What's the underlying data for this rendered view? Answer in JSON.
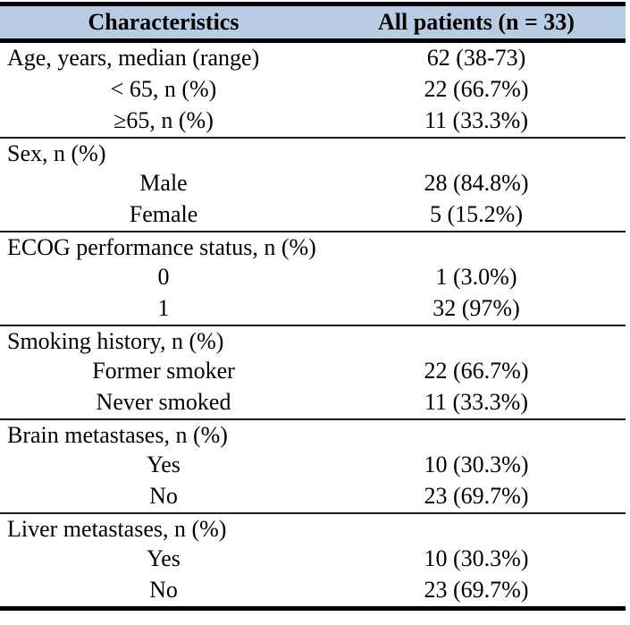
{
  "colors": {
    "header_background": "#b8cce4",
    "rule_color": "#000000",
    "text_color": "#000000"
  },
  "table": {
    "header": {
      "col1": "Characteristics",
      "col2": "All patients (n = 33)"
    },
    "rows": [
      {
        "label": "Age, years, median (range)",
        "value": "62 (38-73)"
      },
      {
        "label": "< 65, n (%)",
        "value": "22 (66.7%)"
      },
      {
        "label": "≥65, n (%)",
        "value": "11 (33.3%)"
      },
      {
        "label": "Sex, n (%)",
        "value": ""
      },
      {
        "label": "Male",
        "value": "28 (84.8%)"
      },
      {
        "label": "Female",
        "value": "5 (15.2%)"
      },
      {
        "label": "ECOG performance status, n (%)",
        "value": ""
      },
      {
        "label": "0",
        "value": "1 (3.0%)"
      },
      {
        "label": "1",
        "value": "32 (97%)"
      },
      {
        "label": "Smoking history, n (%)",
        "value": ""
      },
      {
        "label": "Former smoker",
        "value": "22 (66.7%)"
      },
      {
        "label": "Never smoked",
        "value": "11 (33.3%)"
      },
      {
        "label": "Brain metastases, n (%)",
        "value": ""
      },
      {
        "label": "Yes",
        "value": "10 (30.3%)"
      },
      {
        "label": "No",
        "value": "23 (69.7%)"
      },
      {
        "label": "Liver metastases, n (%)",
        "value": ""
      },
      {
        "label": "Yes",
        "value": "10 (30.3%)"
      },
      {
        "label": "No",
        "value": "23 (69.7%)"
      }
    ]
  },
  "chart_data": {
    "type": "table",
    "title": "",
    "columns": [
      "Characteristics",
      "All patients (n = 33)"
    ],
    "sections": [
      {
        "name": "Age, years, median (range)",
        "value": "62 (38-73)",
        "items": [
          {
            "label": "< 65, n (%)",
            "value": "22 (66.7%)"
          },
          {
            "label": "≥65, n (%)",
            "value": "11 (33.3%)"
          }
        ]
      },
      {
        "name": "Sex, n (%)",
        "value": "",
        "items": [
          {
            "label": "Male",
            "value": "28 (84.8%)"
          },
          {
            "label": "Female",
            "value": "5 (15.2%)"
          }
        ]
      },
      {
        "name": "ECOG performance status, n (%)",
        "value": "",
        "items": [
          {
            "label": "0",
            "value": "1 (3.0%)"
          },
          {
            "label": "1",
            "value": "32 (97%)"
          }
        ]
      },
      {
        "name": "Smoking history, n (%)",
        "value": "",
        "items": [
          {
            "label": "Former smoker",
            "value": "22 (66.7%)"
          },
          {
            "label": "Never smoked",
            "value": "11 (33.3%)"
          }
        ]
      },
      {
        "name": "Brain metastases, n (%)",
        "value": "",
        "items": [
          {
            "label": "Yes",
            "value": "10 (30.3%)"
          },
          {
            "label": "No",
            "value": "23 (69.7%)"
          }
        ]
      },
      {
        "name": "Liver metastases, n (%)",
        "value": "",
        "items": [
          {
            "label": "Yes",
            "value": "10 (30.3%)"
          },
          {
            "label": "No",
            "value": "23 (69.7%)"
          }
        ]
      }
    ]
  }
}
